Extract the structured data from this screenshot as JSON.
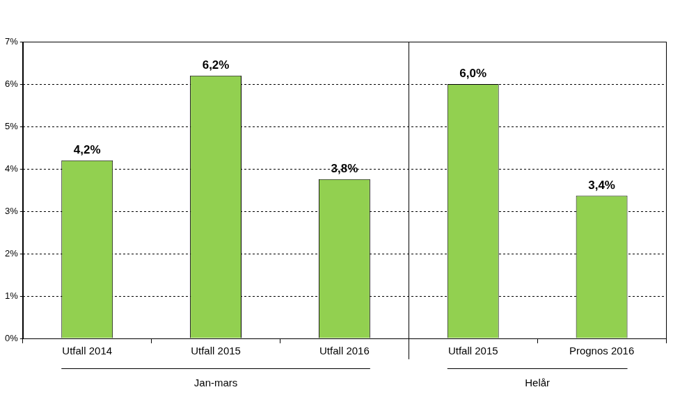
{
  "chart_data": {
    "type": "bar",
    "categories": [
      "Utfall 2014",
      "Utfall 2015",
      "Utfall 2016",
      "Utfall 2015",
      "Prognos 2016"
    ],
    "values": [
      4.2,
      6.2,
      3.76,
      6.0,
      3.37
    ],
    "value_labels": [
      "4,2%",
      "6,2%",
      "3,8%",
      "6,0%",
      "3,4%"
    ],
    "groups": [
      {
        "label": "Jan-mars",
        "count": 3
      },
      {
        "label": "Helår",
        "count": 2
      }
    ],
    "color": "#92d050",
    "ylim": [
      0,
      7
    ],
    "yticks": [
      {
        "value": 0,
        "label": "0%"
      },
      {
        "value": 1,
        "label": "1%"
      },
      {
        "value": 2,
        "label": "2%"
      },
      {
        "value": 3,
        "label": "3%"
      },
      {
        "value": 4,
        "label": "4%"
      },
      {
        "value": 5,
        "label": "5%"
      },
      {
        "value": 6,
        "label": "6%"
      },
      {
        "value": 7,
        "label": "7%"
      }
    ],
    "grid": true,
    "data_labels": true
  }
}
